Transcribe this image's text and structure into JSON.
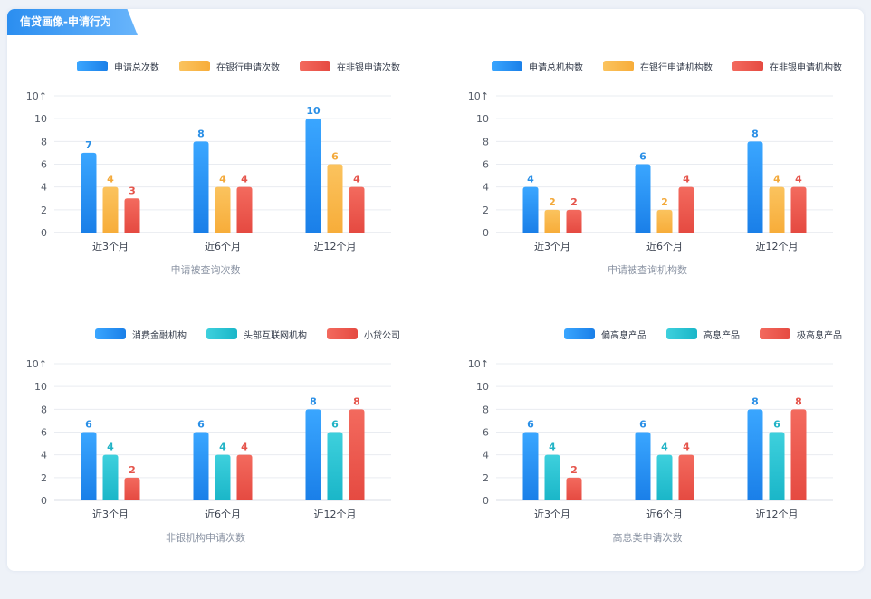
{
  "header": {
    "title": "信贷画像-申请行为"
  },
  "colors": {
    "blue_top": "#3aa6ff",
    "blue_bot": "#1a7fe8",
    "yellow_top": "#fbc35e",
    "yellow_bot": "#f7ad3a",
    "red_top": "#f36a5e",
    "red_bot": "#e54a41",
    "cyan_top": "#3ed0dd",
    "cyan_bot": "#1ab6c8",
    "grid": "#e9ecf1",
    "tick": "#555c68"
  },
  "chart_data": [
    {
      "type": "bar",
      "title": "申请被查询次数",
      "categories": [
        "近3个月",
        "近6个月",
        "近12个月"
      ],
      "ylim": [
        0,
        10
      ],
      "yticks": [
        "0",
        "2",
        "4",
        "6",
        "8",
        "10",
        "10↑"
      ],
      "series": [
        {
          "name": "申请总次数",
          "color": "blue",
          "values": [
            7,
            8,
            10
          ]
        },
        {
          "name": "在银行申请次数",
          "color": "yellow",
          "values": [
            4,
            4,
            6
          ]
        },
        {
          "name": "在非银申请次数",
          "color": "red",
          "values": [
            3,
            4,
            4
          ]
        }
      ]
    },
    {
      "type": "bar",
      "title": "申请被查询机构数",
      "categories": [
        "近3个月",
        "近6个月",
        "近12个月"
      ],
      "ylim": [
        0,
        10
      ],
      "yticks": [
        "0",
        "2",
        "4",
        "6",
        "8",
        "10",
        "10↑"
      ],
      "series": [
        {
          "name": "申请总机构数",
          "color": "blue",
          "values": [
            4,
            6,
            8
          ]
        },
        {
          "name": "在银行申请机构数",
          "color": "yellow",
          "values": [
            2,
            2,
            4
          ]
        },
        {
          "name": "在非银申请机构数",
          "color": "red",
          "values": [
            2,
            4,
            4
          ]
        }
      ]
    },
    {
      "type": "bar",
      "title": "非银机构申请次数",
      "categories": [
        "近3个月",
        "近6个月",
        "近12个月"
      ],
      "ylim": [
        0,
        10
      ],
      "yticks": [
        "0",
        "2",
        "4",
        "6",
        "8",
        "10",
        "10↑"
      ],
      "series": [
        {
          "name": "消费金融机构",
          "color": "blue",
          "values": [
            6,
            6,
            8
          ]
        },
        {
          "name": "头部互联网机构",
          "color": "cyan",
          "values": [
            4,
            4,
            6
          ]
        },
        {
          "name": "小贷公司",
          "color": "red",
          "values": [
            2,
            4,
            8
          ]
        }
      ]
    },
    {
      "type": "bar",
      "title": "高息类申请次数",
      "categories": [
        "近3个月",
        "近6个月",
        "近12个月"
      ],
      "ylim": [
        0,
        10
      ],
      "yticks": [
        "0",
        "2",
        "4",
        "6",
        "8",
        "10",
        "10↑"
      ],
      "series": [
        {
          "name": "偏高息产品",
          "color": "blue",
          "values": [
            6,
            6,
            8
          ]
        },
        {
          "name": "高息产品",
          "color": "cyan",
          "values": [
            4,
            4,
            6
          ]
        },
        {
          "name": "极高息产品",
          "color": "red",
          "values": [
            2,
            4,
            8
          ]
        }
      ]
    }
  ]
}
